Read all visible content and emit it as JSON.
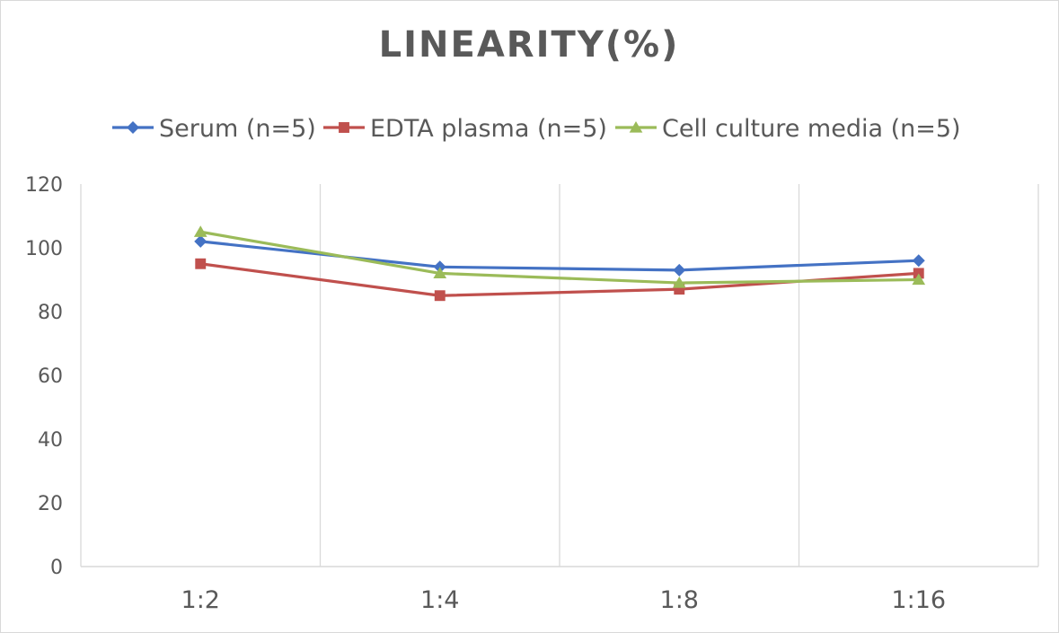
{
  "chart_data": {
    "type": "line",
    "title": "LINEARITY(%)",
    "xlabel": "",
    "ylabel": "",
    "categories": [
      "1:2",
      "1:4",
      "1:8",
      "1:16"
    ],
    "ylim": [
      0,
      120
    ],
    "yticks": [
      0,
      20,
      40,
      60,
      80,
      100,
      120
    ],
    "grid": "vertical",
    "legend_position": "top",
    "series": [
      {
        "name": "Serum (n=5)",
        "values": [
          102,
          94,
          93,
          96
        ],
        "color": "#4472C4",
        "marker": "diamond"
      },
      {
        "name": "EDTA plasma (n=5)",
        "values": [
          95,
          85,
          87,
          92
        ],
        "color": "#C0504D",
        "marker": "square"
      },
      {
        "name": "Cell culture media (n=5)",
        "values": [
          105,
          92,
          89,
          90
        ],
        "color": "#9BBB59",
        "marker": "triangle"
      }
    ]
  }
}
